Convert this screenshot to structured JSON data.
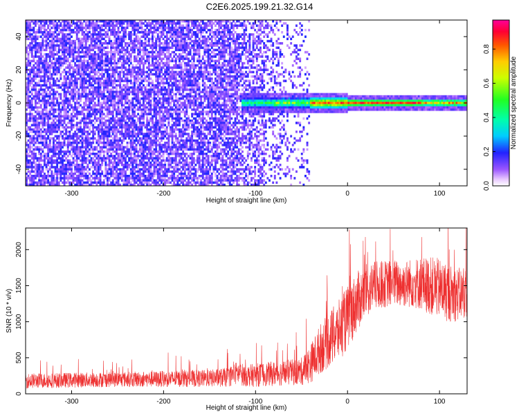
{
  "title": "C2E6.2025.199.21.32.G14",
  "chart_data": [
    {
      "type": "heatmap",
      "xlabel": "Height of straight line (km)",
      "ylabel": "Frequency (Hz)",
      "colorbar_label": "Normalized spectral amplitude",
      "xlim": [
        -350,
        130
      ],
      "ylim": [
        -50,
        50
      ],
      "x_ticks": [
        -300,
        -200,
        -100,
        0,
        100
      ],
      "y_ticks": [
        -40,
        -20,
        0,
        20,
        40
      ],
      "colorbar_range": [
        0,
        0.97
      ],
      "colorbar_ticks": [
        0.0,
        0.2,
        0.4,
        0.6,
        0.8
      ],
      "colormap": "rainbow (white-violet-blue-cyan-green-yellow-red-magenta)",
      "description_values": {
        "signal_band_start_km": -115,
        "signal_center_frequency_hz": 0,
        "noise_region_end_km": -40
      },
      "grid": false
    },
    {
      "type": "line",
      "xlabel": "Height of straight line (km)",
      "ylabel": "SNR (10 * v/v)",
      "xlim": [
        -350,
        130
      ],
      "ylim": [
        0,
        2300
      ],
      "x_ticks": [
        -300,
        -200,
        -100,
        0,
        100
      ],
      "y_ticks": [
        0,
        500,
        1000,
        1500,
        2000
      ],
      "color": "#ee3030",
      "grid": false,
      "series": [
        {
          "x": [
            -350,
            -300,
            -250,
            -200,
            -150,
            -130,
            -120,
            -110,
            -100,
            -90,
            -80,
            -70,
            -60,
            -50,
            -40,
            -30,
            -20,
            -10,
            0,
            10,
            20,
            30,
            40,
            50,
            60,
            70,
            80,
            90,
            100,
            110,
            120,
            130
          ],
          "values": [
            180,
            190,
            200,
            205,
            215,
            230,
            290,
            250,
            260,
            270,
            280,
            290,
            300,
            310,
            420,
            620,
            750,
            870,
            1050,
            1270,
            1420,
            1500,
            1520,
            1540,
            1520,
            1540,
            1530,
            1500,
            1460,
            1400,
            1380,
            1400
          ],
          "spread": [
            70,
            70,
            70,
            75,
            80,
            90,
            110,
            100,
            110,
            110,
            115,
            120,
            120,
            130,
            180,
            230,
            260,
            280,
            300,
            280,
            250,
            230,
            220,
            220,
            220,
            230,
            250,
            270,
            280,
            270,
            250,
            230
          ]
        }
      ]
    }
  ]
}
